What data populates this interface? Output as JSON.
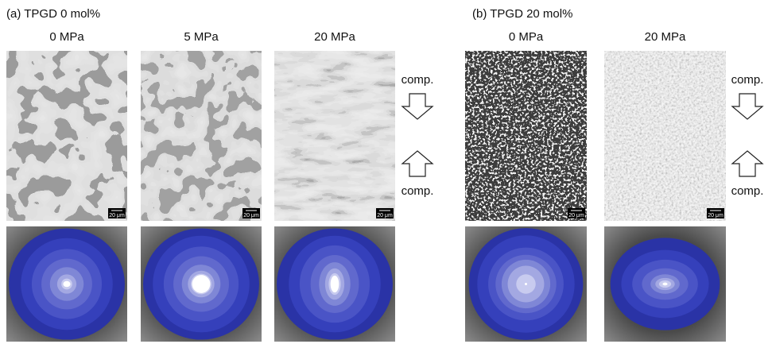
{
  "panels": [
    {
      "title": "(a) TPGD 0 mol%",
      "columns": [
        {
          "label": "0 MPa",
          "scale_bar": "20 μm"
        },
        {
          "label": "5 MPa",
          "scale_bar": "20 μm"
        },
        {
          "label": "20 MPa",
          "scale_bar": "20 μm"
        }
      ],
      "arrows": {
        "top": "comp.",
        "bottom": "comp."
      }
    },
    {
      "title": "(b) TPGD 20 mol%",
      "columns": [
        {
          "label": "0 MPa",
          "scale_bar": "20 μm"
        },
        {
          "label": "20 MPa",
          "scale_bar": "20 μm"
        }
      ],
      "arrows": {
        "top": "comp.",
        "bottom": "comp."
      }
    }
  ]
}
